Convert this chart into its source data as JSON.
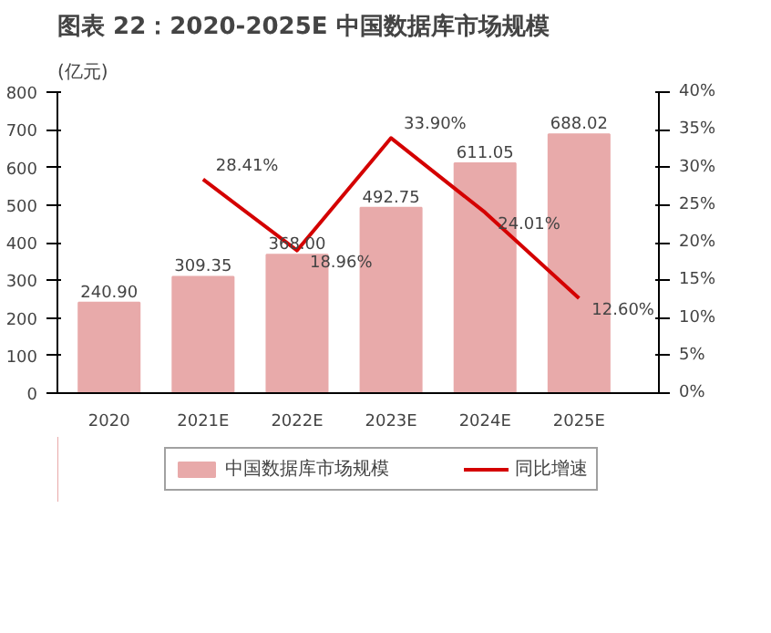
{
  "chart_data": {
    "type": "bar",
    "title": "图表 22：2020-2025E 中国数据库市场规模",
    "ylabel": "(亿元)",
    "categories": [
      "2020",
      "2021E",
      "2022E",
      "2023E",
      "2024E",
      "2025E"
    ],
    "series": [
      {
        "name": "中国数据库市场规模",
        "color": "#e8aaaa",
        "values": [
          240.9,
          309.35,
          368.0,
          492.75,
          611.05,
          688.02
        ],
        "value_labels": [
          "240.90",
          "309.35",
          "368.00",
          "492.75",
          "611.05",
          "688.02"
        ]
      },
      {
        "name": "同比增速",
        "type": "line",
        "axis": "y2",
        "color": "#d40000",
        "values": [
          null,
          28.41,
          18.96,
          33.9,
          24.01,
          12.6
        ],
        "value_labels": [
          null,
          "28.41%",
          "18.96%",
          "33.90%",
          "24.01%",
          "12.60%"
        ]
      }
    ],
    "ylim": [
      0,
      800
    ],
    "yticks": [
      0,
      100,
      200,
      300,
      400,
      500,
      600,
      700,
      800
    ],
    "y2lim": [
      0,
      40
    ],
    "y2ticks": [
      {
        "value": 0,
        "label": "0%"
      },
      {
        "value": 5,
        "label": "5%"
      },
      {
        "value": 10,
        "label": "10%"
      },
      {
        "value": 15,
        "label": "15%"
      },
      {
        "value": 20,
        "label": "20%"
      },
      {
        "value": 25,
        "label": "25%"
      },
      {
        "value": 30,
        "label": "30%"
      },
      {
        "value": 35,
        "label": "35%"
      },
      {
        "value": 40,
        "label": "40%"
      }
    ],
    "legend": "bottom"
  }
}
